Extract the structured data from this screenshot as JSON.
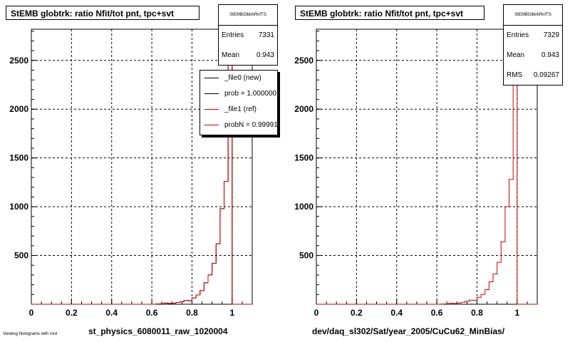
{
  "chart_data": [
    {
      "type": "histogram",
      "title": "StEMB globtrk: ratio Nfit/tot pnt, tpc+svt",
      "xlabel": "st_physics_6080011_raw_1020004",
      "ylabel": "",
      "xlim": [
        0,
        1.1
      ],
      "ylim": [
        0,
        2820
      ],
      "grid": true,
      "x_ticks": [
        "0",
        "0.2",
        "0.4",
        "0.6",
        "0.8",
        "1"
      ],
      "y_ticks": [
        "500",
        "1000",
        "1500",
        "2000",
        "2500"
      ],
      "stats": {
        "name": "StEMBGlbtrkRnfTS",
        "rows": [
          {
            "label": "Entries",
            "value": "7331"
          },
          {
            "label": "Mean",
            "value": "0.943"
          }
        ]
      },
      "legend": {
        "placement": "top-right",
        "entries": [
          {
            "label": "_file0 (new)",
            "color": "#000000"
          },
          {
            "label": "prob = 1.000000",
            "color": "#000000"
          },
          {
            "label": "_file1 (ref)",
            "color": "#cc0000"
          },
          {
            "label": "probN = 0.999910",
            "color": "#cc0000"
          }
        ]
      },
      "bin_width": 0.02,
      "bins_x": [
        0.62,
        0.64,
        0.66,
        0.68,
        0.7,
        0.72,
        0.74,
        0.76,
        0.78,
        0.8,
        0.82,
        0.84,
        0.86,
        0.88,
        0.9,
        0.92,
        0.94,
        0.96,
        0.98,
        1.0
      ],
      "series": [
        {
          "name": "_file0 (new)",
          "color": "#000000",
          "values": [
            3,
            5,
            12,
            8,
            10,
            18,
            25,
            40,
            35,
            65,
            95,
            140,
            220,
            300,
            420,
            620,
            980,
            1260,
            2700,
            0
          ]
        },
        {
          "name": "_file1 (ref)",
          "color": "#cc0000",
          "values": [
            3,
            5,
            12,
            8,
            10,
            18,
            25,
            40,
            35,
            65,
            95,
            140,
            220,
            300,
            420,
            620,
            980,
            1260,
            2700,
            0
          ]
        }
      ]
    },
    {
      "type": "histogram",
      "title": "StEMB globtrk: ratio Nfit/tot pnt, tpc+svt",
      "xlabel": "dev/daq_sl302/Sat/year_2005/CuCu62_MinBias/",
      "ylabel": "",
      "xlim": [
        0,
        1.1
      ],
      "ylim": [
        0,
        2820
      ],
      "grid": true,
      "x_ticks": [
        "0",
        "0.2",
        "0.4",
        "0.6",
        "0.8",
        "1"
      ],
      "y_ticks": [
        "500",
        "1000",
        "1500",
        "2000",
        "2500"
      ],
      "stats": {
        "name": "StEMBGlbtrkRnfTS",
        "rows": [
          {
            "label": "Entries",
            "value": "7329"
          },
          {
            "label": "Mean",
            "value": "0.943"
          },
          {
            "label": "RMS",
            "value": "0.09267"
          }
        ]
      },
      "bin_width": 0.02,
      "bins_x": [
        0.62,
        0.64,
        0.66,
        0.68,
        0.7,
        0.72,
        0.74,
        0.76,
        0.78,
        0.8,
        0.82,
        0.84,
        0.86,
        0.88,
        0.9,
        0.92,
        0.94,
        0.96,
        0.98,
        1.0
      ],
      "series": [
        {
          "name": "",
          "color": "#cc0000",
          "values": [
            2,
            4,
            10,
            8,
            12,
            20,
            28,
            42,
            40,
            70,
            100,
            150,
            230,
            310,
            430,
            640,
            1000,
            1280,
            2900,
            0
          ]
        }
      ]
    }
  ],
  "footer": "Viewing histograms with root"
}
